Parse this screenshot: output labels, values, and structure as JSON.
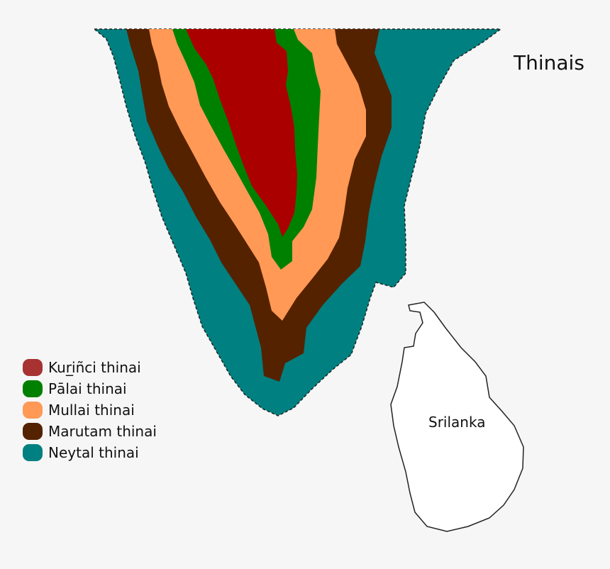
{
  "map": {
    "title": "Thinais",
    "island_label": "Srilanka",
    "background": "#f6f6f6",
    "zones": [
      {
        "label": "Kur̲iñci thinai",
        "color": "#a83232"
      },
      {
        "label": "Pālai thinai",
        "color": "#008000"
      },
      {
        "label": "Mullai thinai",
        "color": "#ff9955"
      },
      {
        "label": "Marutam thinai",
        "color": "#552200"
      },
      {
        "label": "Neytal thinai",
        "color": "#008080"
      }
    ],
    "island_fill": "#ffffff",
    "coast_line": "dashed"
  }
}
